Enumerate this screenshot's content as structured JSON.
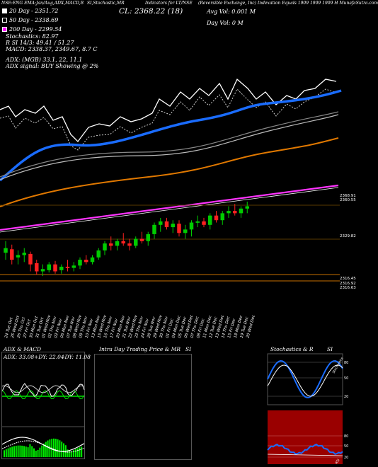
{
  "header": {
    "left_codes": "NSE:ENG EMA:Jan/Aug,ADX,MACD,B",
    "studies": "SI,Stochastic,MR",
    "mid": "Indicators for LT/NSE",
    "description": "(Reversible Exchange, Inc) Indexation Equals 1909 1909 1909 H MunafaSutra.com",
    "cl_label": "CL: 2368.22 (18)",
    "avg_vol": "Avg Vol: 0.001 M",
    "day_vol": "Day Vol: 0   M"
  },
  "legend": [
    {
      "label": "20   Day - 2351.72",
      "color": "#ffffff"
    },
    {
      "label": "50   Day - 2338.69",
      "color": "#ffffff"
    },
    {
      "label": "200  Day - 2299.54",
      "color": "#ff00ff"
    }
  ],
  "info_lines": [
    "Stochastics: 82.97",
    "R          SI 14/3: 49.41 / 51.27",
    "MACD: 2338.37,  2349.67,  8.7 C"
  ],
  "adx_line": "ADX:                                   (MGB) 33.1,  22,  11.1",
  "adx_signal": "ADX   signal:                          BUY Showing @ 2%",
  "price_labels": [
    {
      "value": "2368.91",
      "y": 278
    },
    {
      "value": "2360.55",
      "y": 284
    },
    {
      "value": "2329.82",
      "y": 335
    },
    {
      "value": "2316.45",
      "y": 395
    },
    {
      "value": "2316.92",
      "y": 402
    },
    {
      "value": "2316.63",
      "y": 408
    }
  ],
  "chart_data": {
    "type": "candlestick",
    "dates": [
      "24 Tue Oct",
      "25 Wed Oct",
      "26 Thu Oct",
      "27 Fri Oct",
      "30 Mon Oct",
      "31 Tue Oct",
      "01 Wed Nov",
      "02 Thu Nov",
      "03 Fri Nov",
      "06 Mon Nov",
      "07 Tue Nov",
      "08 Wed Nov",
      "09 Thu Nov",
      "10 Fri Nov",
      "13 Mon Nov",
      "15 Wed Nov",
      "16 Thu Nov",
      "17 Fri Nov",
      "20 Mon Nov",
      "21 Tue Nov",
      "22 Wed Nov",
      "23 Thu Nov",
      "24 Fri Nov",
      "28 Tue Nov",
      "29 Wed Nov",
      "30 Thu Nov",
      "01 Fri Dec",
      "04 Mon Dec",
      "05 Tue Dec",
      "06 Wed Dec",
      "07 Thu Dec",
      "08 Fri Dec",
      "11 Mon Dec",
      "12 Tue Dec",
      "13 Wed Dec",
      "14 Thu Dec",
      "15 Fri Dec",
      "18 Mon Dec",
      "19 Tue Dec",
      "20 Wed Dec"
    ],
    "candles": [
      [
        2328,
        2338,
        2322,
        2332
      ],
      [
        2331,
        2335,
        2318,
        2322
      ],
      [
        2324,
        2330,
        2318,
        2326
      ],
      [
        2326,
        2332,
        2320,
        2328
      ],
      [
        2327,
        2329,
        2312,
        2318
      ],
      [
        2319,
        2322,
        2309,
        2312
      ],
      [
        2312,
        2318,
        2308,
        2314
      ],
      [
        2313,
        2320,
        2311,
        2318
      ],
      [
        2318,
        2321,
        2310,
        2312
      ],
      [
        2313,
        2318,
        2310,
        2316
      ],
      [
        2316,
        2322,
        2312,
        2315
      ],
      [
        2315,
        2320,
        2312,
        2317
      ],
      [
        2317,
        2324,
        2314,
        2322
      ],
      [
        2322,
        2326,
        2318,
        2320
      ],
      [
        2320,
        2326,
        2318,
        2324
      ],
      [
        2324,
        2332,
        2322,
        2330
      ],
      [
        2330,
        2338,
        2326,
        2336
      ],
      [
        2336,
        2342,
        2330,
        2334
      ],
      [
        2334,
        2340,
        2330,
        2338
      ],
      [
        2338,
        2345,
        2334,
        2336
      ],
      [
        2336,
        2340,
        2330,
        2334
      ],
      [
        2334,
        2342,
        2332,
        2340
      ],
      [
        2340,
        2346,
        2336,
        2338
      ],
      [
        2338,
        2346,
        2334,
        2344
      ],
      [
        2344,
        2354,
        2340,
        2352
      ],
      [
        2352,
        2358,
        2346,
        2355
      ],
      [
        2355,
        2358,
        2348,
        2350
      ],
      [
        2350,
        2356,
        2345,
        2353
      ],
      [
        2353,
        2356,
        2342,
        2345
      ],
      [
        2345,
        2352,
        2340,
        2348
      ],
      [
        2348,
        2356,
        2342,
        2354
      ],
      [
        2354,
        2360,
        2350,
        2355
      ],
      [
        2355,
        2358,
        2350,
        2352
      ],
      [
        2352,
        2362,
        2348,
        2360
      ],
      [
        2360,
        2364,
        2354,
        2356
      ],
      [
        2356,
        2364,
        2352,
        2362
      ],
      [
        2362,
        2368,
        2358,
        2364
      ],
      [
        2364,
        2370,
        2360,
        2362
      ],
      [
        2362,
        2368,
        2358,
        2366
      ],
      [
        2366,
        2372,
        2362,
        2368
      ]
    ],
    "ylim": [
      2305,
      2385
    ]
  },
  "panels": {
    "adx": {
      "title": "ADX  & MACD",
      "adx": "ADX: 33.08",
      "dip": "+DY: 22.04",
      "dim": "-DY: 11.08"
    },
    "intraday": {
      "title": "Intra  Day Trading Price  & MR",
      "si": "SI"
    },
    "stoch": {
      "title": "Stochastics & R",
      "si": "SI",
      "ticks_top": [
        "80",
        "50",
        "20"
      ],
      "ticks_bot": [
        "80",
        "50",
        "20"
      ],
      "tag_top": "Stochastics",
      "tag_bot": "RSI"
    }
  }
}
